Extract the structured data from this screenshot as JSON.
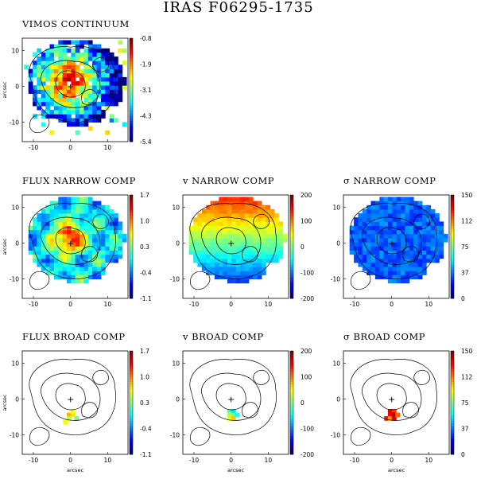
{
  "figure": {
    "title": "IRAS F06295-1735",
    "colormap": [
      "#000080",
      "#0000ff",
      "#0080ff",
      "#00ffff",
      "#80ff80",
      "#ffff00",
      "#ff8000",
      "#ff0000",
      "#800000"
    ],
    "contour_color": "#000000",
    "nucleus_marker": "+"
  },
  "panels": [
    {
      "title": "VIMOS CONTINUUM",
      "ylabel": "arcsec",
      "xlabel": "",
      "xticks": [
        "-10",
        "0",
        "10"
      ],
      "yticks": [
        "10",
        "0",
        "-10"
      ],
      "colorbar_ticks": [
        "-0.8",
        "-1.9",
        "-3.1",
        "-4.3",
        "-5.4"
      ],
      "map": "continuum"
    },
    {
      "title": "FLUX NARROW COMP",
      "ylabel": "arcsec",
      "xlabel": "",
      "xticks": [
        "-10",
        "0",
        "10"
      ],
      "yticks": [
        "10",
        "0",
        "-10"
      ],
      "colorbar_ticks": [
        "1.7",
        "1.0",
        "0.3",
        "-0.4",
        "-1.1"
      ],
      "map": "flux_narrow"
    },
    {
      "title": "v NARROW COMP",
      "ylabel": "",
      "xlabel": "",
      "xticks": [
        "-10",
        "0",
        "10"
      ],
      "yticks": [
        "10",
        "0",
        "-10"
      ],
      "colorbar_ticks": [
        "200",
        "100",
        "0",
        "-100",
        "-200"
      ],
      "map": "v_narrow"
    },
    {
      "title": "σ NARROW COMP",
      "ylabel": "",
      "xlabel": "",
      "xticks": [
        "-10",
        "0",
        "10"
      ],
      "yticks": [
        "10",
        "0",
        "-10"
      ],
      "colorbar_ticks": [
        "150",
        "112",
        "75",
        "37",
        "0"
      ],
      "map": "sigma_narrow"
    },
    {
      "title": "FLUX BROAD COMP",
      "ylabel": "arcsec",
      "xlabel": "arcsec",
      "xticks": [
        "-10",
        "0",
        "10"
      ],
      "yticks": [
        "10",
        "0",
        "-10"
      ],
      "colorbar_ticks": [
        "1.7",
        "1.0",
        "0.3",
        "-0.4",
        "-1.1"
      ],
      "map": "flux_broad"
    },
    {
      "title": "v BROAD COMP",
      "ylabel": "",
      "xlabel": "arcsec",
      "xticks": [
        "-10",
        "0",
        "10"
      ],
      "yticks": [
        "10",
        "0",
        "-10"
      ],
      "colorbar_ticks": [
        "200",
        "100",
        "0",
        "-100",
        "-200"
      ],
      "map": "v_broad"
    },
    {
      "title": "σ BROAD COMP",
      "ylabel": "",
      "xlabel": "arcsec",
      "xticks": [
        "-10",
        "0",
        "10"
      ],
      "yticks": [
        "10",
        "0",
        "-10"
      ],
      "colorbar_ticks": [
        "150",
        "112",
        "75",
        "37",
        "0"
      ],
      "map": "sigma_broad"
    }
  ]
}
